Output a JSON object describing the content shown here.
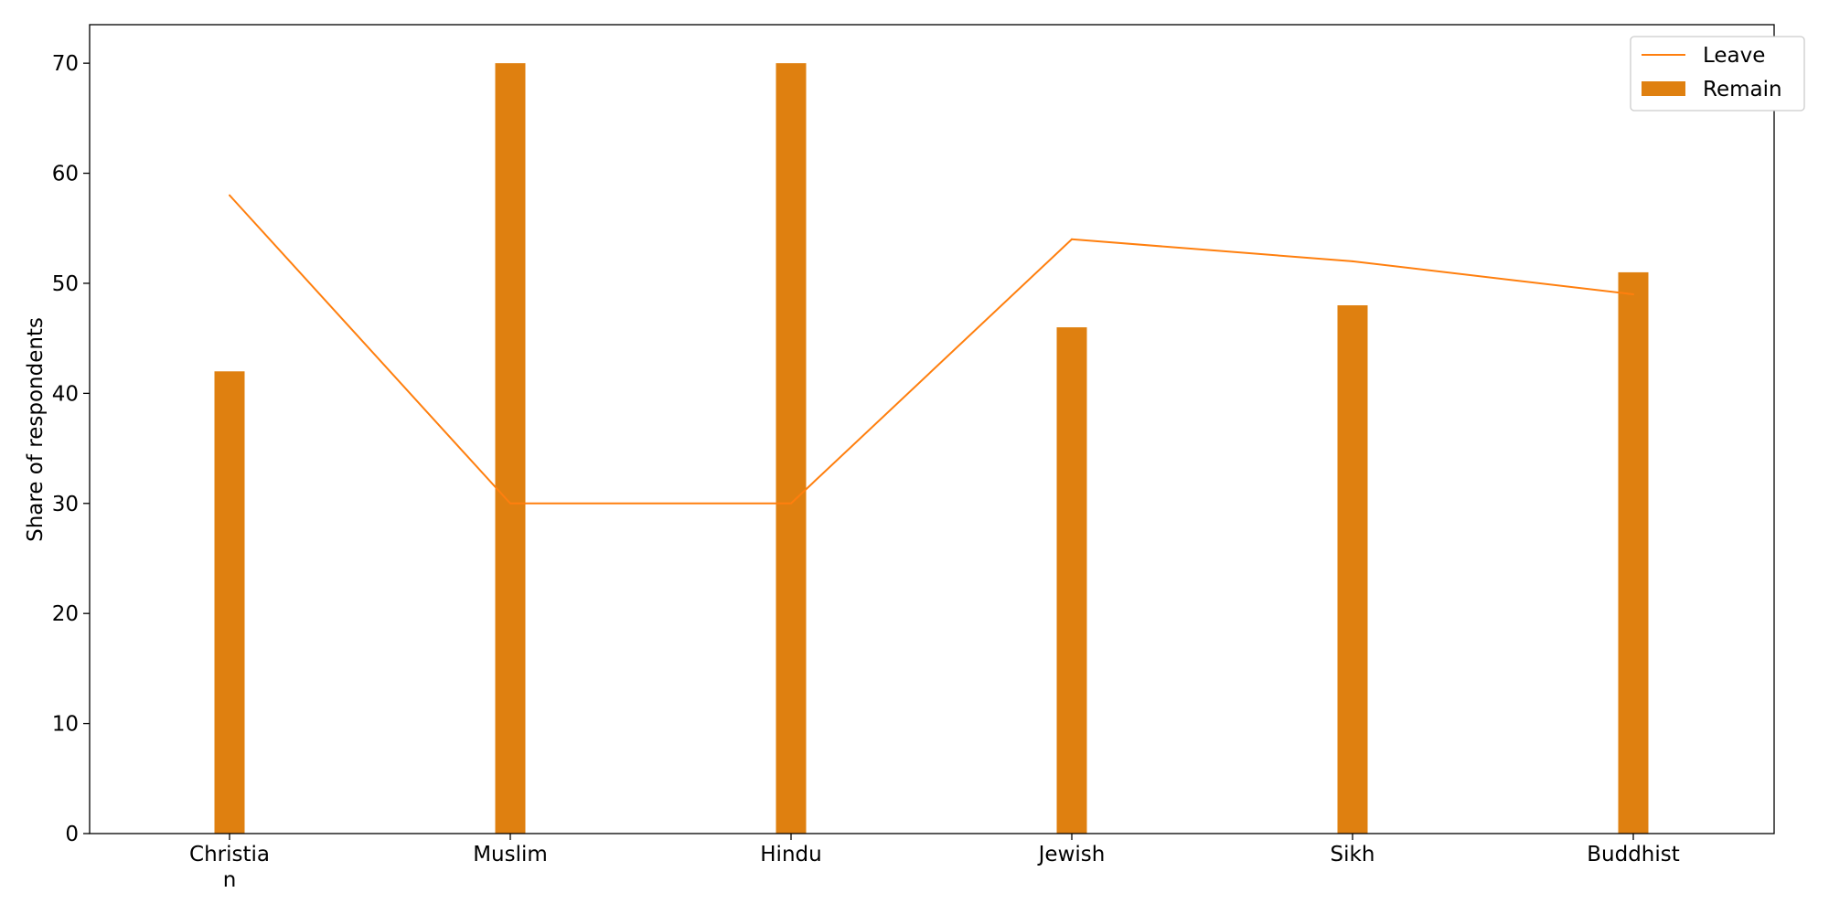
{
  "chart_data": {
    "type": "bar",
    "categories": [
      "Christian",
      "Muslim",
      "Hindu",
      "Jewish",
      "Sikh",
      "Buddhist"
    ],
    "category_tick_lines": [
      [
        "Christia",
        "n"
      ],
      [
        "Muslim"
      ],
      [
        "Hindu"
      ],
      [
        "Jewish"
      ],
      [
        "Sikh"
      ],
      [
        "Buddhist"
      ]
    ],
    "series": [
      {
        "name": "Remain",
        "type": "bar",
        "color": "#df8010",
        "values": [
          42,
          70,
          70,
          46,
          48,
          51
        ]
      },
      {
        "name": "Leave",
        "type": "line",
        "color": "#ff7f0e",
        "values": [
          58,
          30,
          30,
          54,
          52,
          49
        ]
      }
    ],
    "title": "",
    "xlabel": "",
    "ylabel": "Share of respondents",
    "ylim": [
      0,
      73.5
    ],
    "yticks": [
      0,
      10,
      20,
      30,
      40,
      50,
      60,
      70
    ],
    "grid": false,
    "legend": {
      "position": "top-right",
      "entries": [
        "Leave",
        "Remain"
      ]
    }
  }
}
